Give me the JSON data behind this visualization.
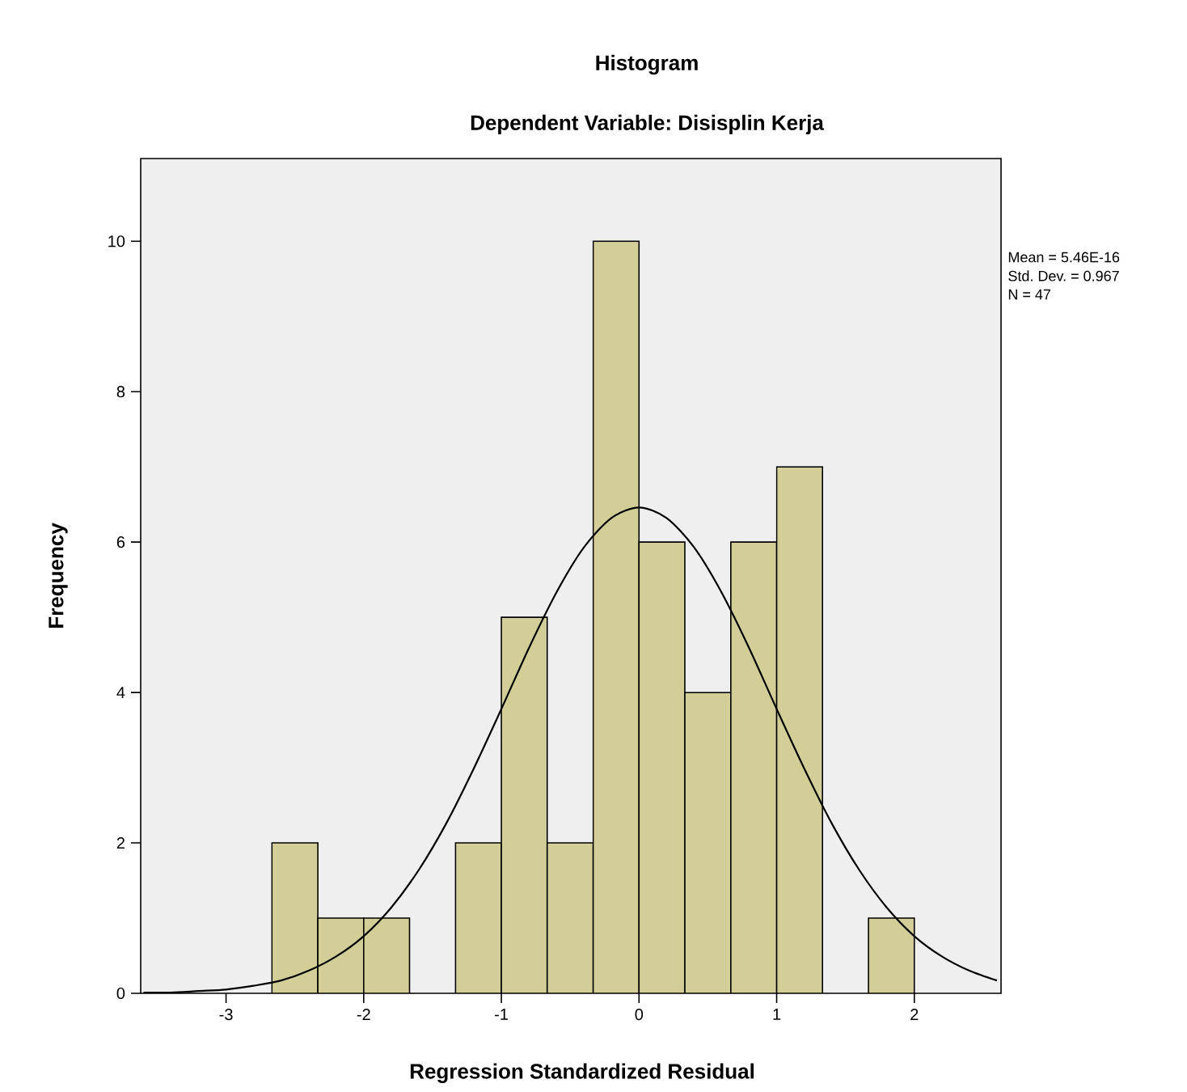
{
  "chart_data": {
    "type": "histogram",
    "title": "Histogram",
    "subtitle": "Dependent Variable: Disisplin Kerja",
    "xlabel": "Regression Standardized Residual",
    "ylabel": "Frequency",
    "annotations": [
      "Mean = 5.46E-16",
      "Std. Dev. = 0.967",
      "N = 47"
    ],
    "xlim": [
      -3.62,
      2.63
    ],
    "ylim": [
      0,
      11.1
    ],
    "xticks": [
      -3,
      -2,
      -1,
      0,
      1,
      2
    ],
    "yticks": [
      0,
      2,
      4,
      6,
      8,
      10
    ],
    "series": [
      {
        "color": "#d3ce97",
        "bins": [
          -2.667,
          -2.333,
          -2.0,
          -1.667,
          -1.333,
          -1.0,
          -0.667,
          -0.333,
          0.0,
          0.333,
          0.667,
          1.0,
          1.333,
          1.667,
          2.0
        ],
        "values": [
          2,
          1,
          1,
          0,
          2,
          5,
          2,
          10,
          6,
          4,
          6,
          7,
          0,
          1
        ]
      },
      {
        "type": "line",
        "color": "#000000",
        "x": [
          -3.6,
          -3.4,
          -3.2,
          -3.0,
          -2.8,
          -2.6,
          -2.4,
          -2.2,
          -2.0,
          -1.8,
          -1.6,
          -1.4,
          -1.2,
          -1.0,
          -0.8,
          -0.6,
          -0.4,
          -0.2,
          0.0,
          0.2,
          0.4,
          0.6,
          0.8,
          1.0,
          1.2,
          1.4,
          1.6,
          1.8,
          2.0,
          2.2,
          2.4,
          2.6
        ],
        "values": [
          0.01,
          0.01,
          0.03,
          0.05,
          0.1,
          0.17,
          0.3,
          0.49,
          0.76,
          1.14,
          1.64,
          2.26,
          2.99,
          3.78,
          4.59,
          5.33,
          5.93,
          6.32,
          6.46,
          6.32,
          5.93,
          5.33,
          4.59,
          3.78,
          2.99,
          2.26,
          1.64,
          1.14,
          0.76,
          0.49,
          0.3,
          0.17
        ]
      }
    ]
  }
}
